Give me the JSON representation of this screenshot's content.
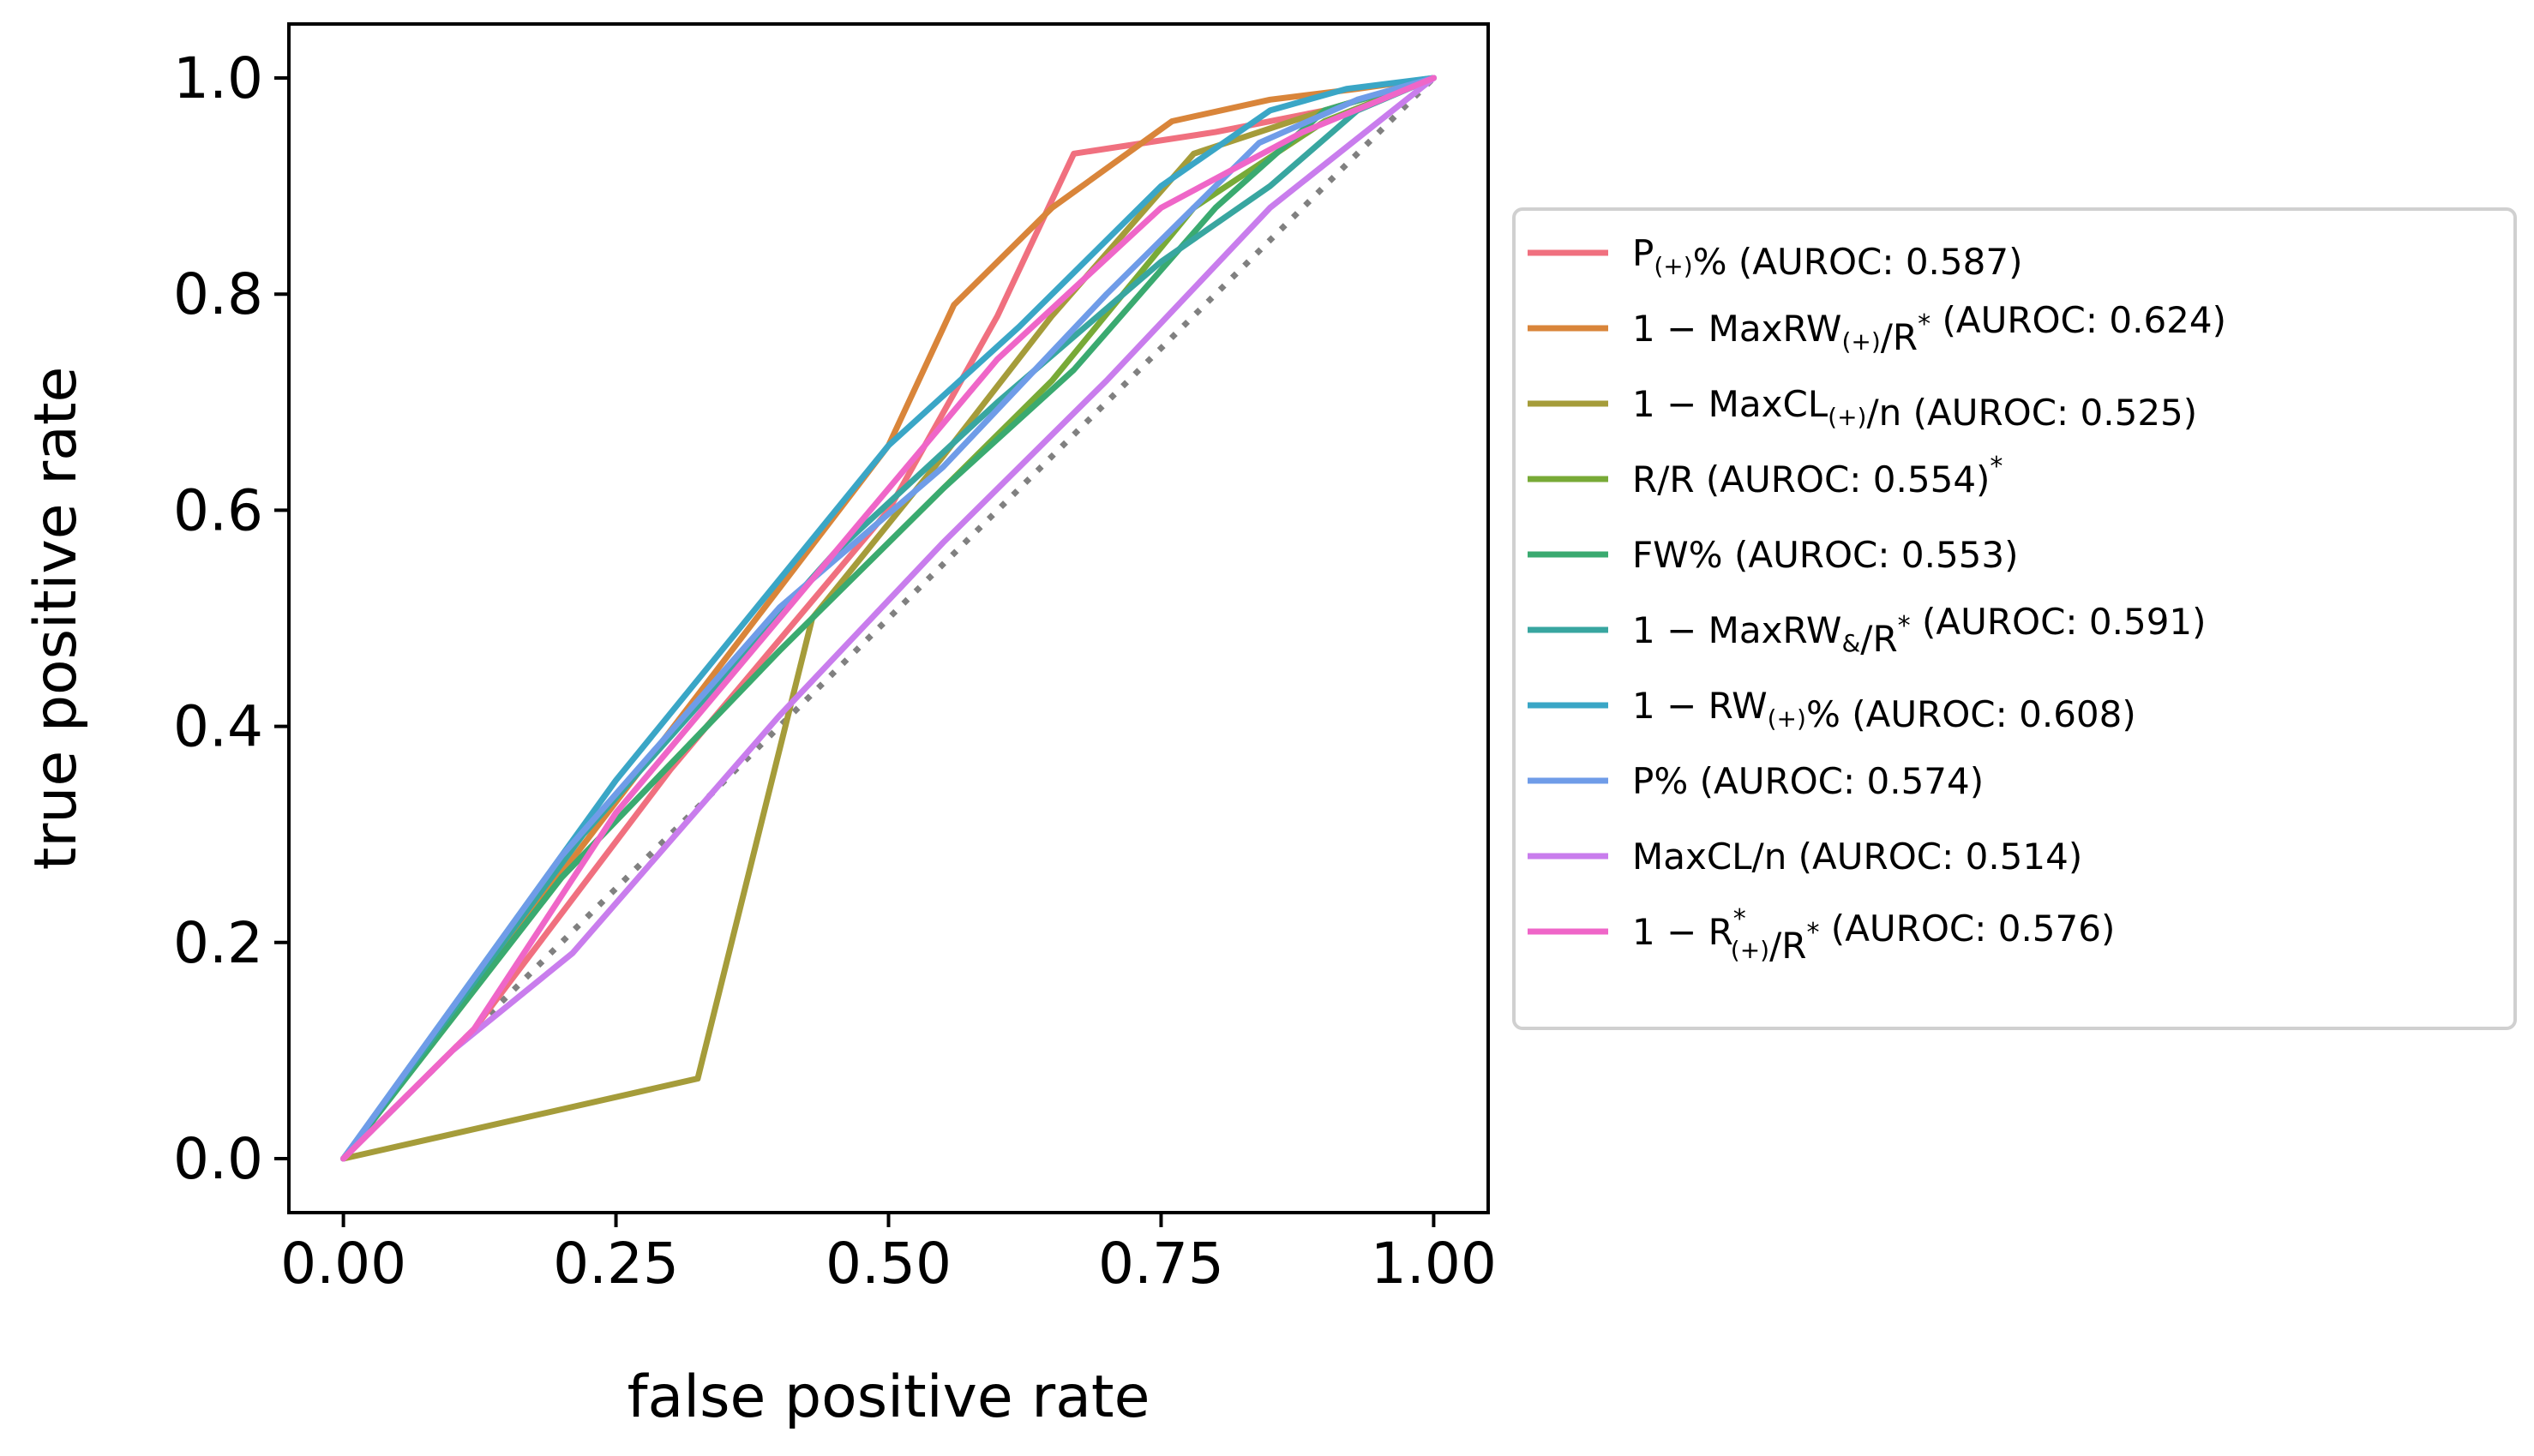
{
  "chart_data": {
    "type": "line",
    "xlabel": "false positive rate",
    "ylabel": "true positive rate",
    "xlim": [
      -0.05,
      1.05
    ],
    "ylim": [
      -0.05,
      1.05
    ],
    "xticks": [
      "0.00",
      "0.25",
      "0.50",
      "0.75",
      "1.00"
    ],
    "yticks": [
      "0.0",
      "0.2",
      "0.4",
      "0.6",
      "0.8",
      "1.0"
    ],
    "grid": false,
    "legend_position": "right-outside",
    "diagonal_reference": {
      "x": [
        0,
        1
      ],
      "y": [
        0,
        1
      ],
      "color": "#808080",
      "style": "dotted"
    },
    "series": [
      {
        "id": "p-plus",
        "name": "P(+)% (AUROC: 0.587)",
        "color": "#f0707f",
        "label": {
          "main": "P",
          "sub": "(+)",
          "after": "% (AUROC: 0.587)"
        },
        "x": [
          0,
          0.12,
          0.3,
          0.5,
          0.6,
          0.67,
          0.8,
          0.9,
          1.0
        ],
        "y": [
          0,
          0.12,
          0.36,
          0.6,
          0.78,
          0.93,
          0.95,
          0.97,
          1.0
        ]
      },
      {
        "id": "maxrw-plus",
        "name": "1 − MaxRW(+)/R* (AUROC: 0.624)",
        "color": "#d9853a",
        "label": {
          "main": "1 − MaxRW",
          "sub": "(+)",
          "after": "/R",
          "sup": "*",
          "tail": " (AUROC: 0.624)"
        },
        "x": [
          0,
          0.25,
          0.5,
          0.56,
          0.65,
          0.76,
          0.85,
          0.93,
          1.0
        ],
        "y": [
          0,
          0.33,
          0.66,
          0.79,
          0.88,
          0.96,
          0.98,
          0.99,
          1.0
        ]
      },
      {
        "id": "maxcl-plus",
        "name": "1 − MaxCL(+)/n (AUROC: 0.525)",
        "color": "#a59c3a",
        "label": {
          "main": "1 − MaxCL",
          "sub": "(+)",
          "after": "/n (AUROC: 0.525)"
        },
        "x": [
          0,
          0.325,
          0.43,
          0.55,
          0.65,
          0.78,
          0.9,
          1.0
        ],
        "y": [
          0,
          0.074,
          0.5,
          0.65,
          0.78,
          0.93,
          0.97,
          1.0
        ]
      },
      {
        "id": "r-star-r",
        "name": "R*/R (AUROC: 0.554)",
        "color": "#78aa37",
        "label": {
          "main": "R",
          "sup": "*",
          "after": "/R (AUROC: 0.554)"
        },
        "x": [
          0,
          0.2,
          0.4,
          0.55,
          0.65,
          0.78,
          0.9,
          1.0
        ],
        "y": [
          0,
          0.26,
          0.47,
          0.62,
          0.72,
          0.88,
          0.96,
          1.0
        ]
      },
      {
        "id": "fw",
        "name": "FW% (AUROC: 0.553)",
        "color": "#3aaa70",
        "label": {
          "main": "FW% (AUROC: 0.553)"
        },
        "x": [
          0,
          0.2,
          0.4,
          0.55,
          0.67,
          0.8,
          0.9,
          1.0
        ],
        "y": [
          0,
          0.26,
          0.47,
          0.62,
          0.73,
          0.88,
          0.97,
          1.0
        ]
      },
      {
        "id": "maxrw-and",
        "name": "1 − MaxRW&/R* (AUROC: 0.591)",
        "color": "#38a6a0",
        "label": {
          "main": "1 − MaxRW",
          "sub": "&",
          "after": "/R",
          "sup": "*",
          "tail": " (AUROC: 0.591)"
        },
        "x": [
          0,
          0.22,
          0.45,
          0.6,
          0.75,
          0.85,
          0.93,
          1.0
        ],
        "y": [
          0,
          0.3,
          0.56,
          0.7,
          0.83,
          0.9,
          0.97,
          1.0
        ]
      },
      {
        "id": "rw-plus",
        "name": "1 − RW(+)% (AUROC: 0.608)",
        "color": "#3aa6c6",
        "label": {
          "main": "1 − RW",
          "sub": "(+)",
          "after": "% (AUROC: 0.608)"
        },
        "x": [
          0,
          0.25,
          0.5,
          0.62,
          0.75,
          0.85,
          0.92,
          1.0
        ],
        "y": [
          0,
          0.35,
          0.66,
          0.77,
          0.9,
          0.97,
          0.99,
          1.0
        ]
      },
      {
        "id": "p",
        "name": "P% (AUROC: 0.574)",
        "color": "#6f9ce8",
        "label": {
          "main": "P% (AUROC: 0.574)"
        },
        "x": [
          0,
          0.2,
          0.4,
          0.55,
          0.7,
          0.84,
          0.93,
          1.0
        ],
        "y": [
          0,
          0.28,
          0.51,
          0.64,
          0.8,
          0.94,
          0.98,
          1.0
        ]
      },
      {
        "id": "maxcl",
        "name": "MaxCL/n (AUROC: 0.514)",
        "color": "#c97ded",
        "label": {
          "main": "MaxCL/n (AUROC: 0.514)"
        },
        "x": [
          0,
          0.1,
          0.21,
          0.4,
          0.55,
          0.7,
          0.85,
          1.0
        ],
        "y": [
          0,
          0.1,
          0.19,
          0.41,
          0.57,
          0.72,
          0.88,
          1.0
        ]
      },
      {
        "id": "r-plus-star",
        "name": "1 − R*(+)/R* (AUROC: 0.576)",
        "color": "#ef66c8",
        "label": {
          "main": "1 − R",
          "subsup": [
            "*",
            "(+)"
          ],
          "after": "/R",
          "sup": "*",
          "tail": " (AUROC: 0.576)"
        },
        "x": [
          0,
          0.12,
          0.25,
          0.45,
          0.6,
          0.75,
          0.88,
          1.0
        ],
        "y": [
          0,
          0.12,
          0.32,
          0.56,
          0.74,
          0.88,
          0.95,
          1.0
        ]
      }
    ]
  }
}
